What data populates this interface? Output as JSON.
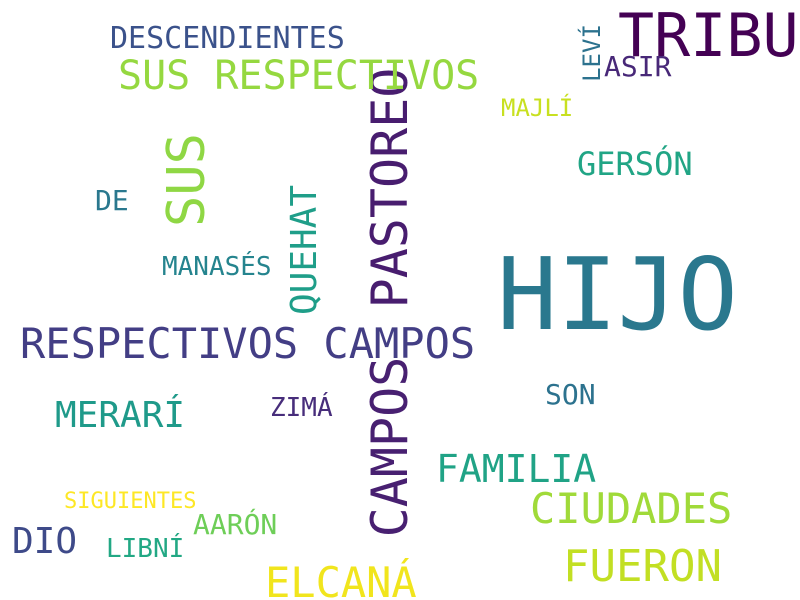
{
  "words": [
    {
      "text": "HIJO",
      "color": "#2a788e"
    },
    {
      "text": "TRIBU",
      "color": "#440154"
    },
    {
      "text": "PASTOREO",
      "color": "#481d6f"
    },
    {
      "text": "CAMPOS",
      "color": "#482071"
    },
    {
      "text": "SUS RESPECTIVOS",
      "color": "#95d840"
    },
    {
      "text": "RESPECTIVOS CAMPOS",
      "color": "#433e85"
    },
    {
      "text": "SUS",
      "color": "#8fd744"
    },
    {
      "text": "QUEHAT",
      "color": "#1f9e89"
    },
    {
      "text": "DESCENDIENTES",
      "color": "#3b528b"
    },
    {
      "text": "LEVÍ",
      "color": "#2c728e"
    },
    {
      "text": "ASIR",
      "color": "#482878"
    },
    {
      "text": "MAJLÍ",
      "color": "#c8e020"
    },
    {
      "text": "GERSÓN",
      "color": "#21a585"
    },
    {
      "text": "DE",
      "color": "#2a788e"
    },
    {
      "text": "MANASÉS",
      "color": "#25848e"
    },
    {
      "text": "SON",
      "color": "#2c728e"
    },
    {
      "text": "MERARÍ",
      "color": "#1f9a8a"
    },
    {
      "text": "ZIMÁ",
      "color": "#472d7b"
    },
    {
      "text": "FAMILIA",
      "color": "#20a386"
    },
    {
      "text": "CIUDADES",
      "color": "#a0da39"
    },
    {
      "text": "SIGUIENTES",
      "color": "#fde725"
    },
    {
      "text": "AARÓN",
      "color": "#6ece58"
    },
    {
      "text": "DIO",
      "color": "#3e4a89"
    },
    {
      "text": "LIBNÍ",
      "color": "#22a884"
    },
    {
      "text": "FUERON",
      "color": "#c2df23"
    },
    {
      "text": "ELCANÁ",
      "color": "#f1e51d"
    }
  ]
}
